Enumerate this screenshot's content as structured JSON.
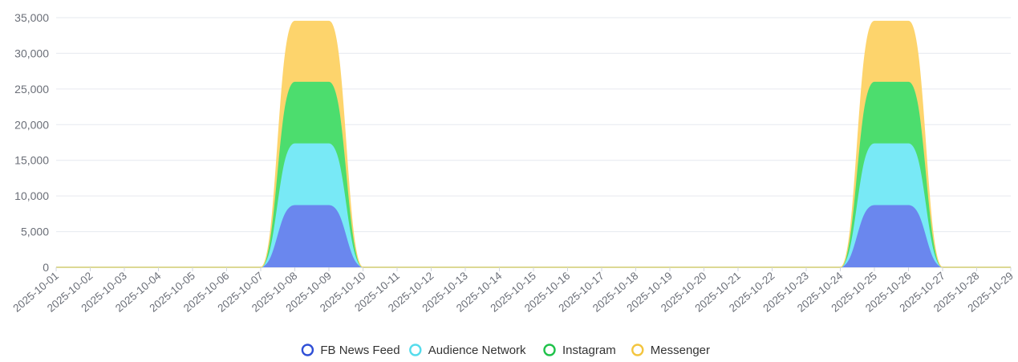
{
  "chart_data": {
    "type": "area",
    "stacked": true,
    "smooth": true,
    "title": "",
    "xlabel": "",
    "ylabel": "",
    "ylim": [
      0,
      35000
    ],
    "yticks": [
      0,
      5000,
      10000,
      15000,
      20000,
      25000,
      30000,
      35000
    ],
    "ytick_labels": [
      "0",
      "5,000",
      "10,000",
      "15,000",
      "20,000",
      "25,000",
      "30,000",
      "35,000"
    ],
    "grid": true,
    "legend_position": "bottom-center",
    "categories": [
      "2025-10-01",
      "2025-10-02",
      "2025-10-03",
      "2025-10-04",
      "2025-10-05",
      "2025-10-06",
      "2025-10-07",
      "2025-10-08",
      "2025-10-09",
      "2025-10-10",
      "2025-10-11",
      "2025-10-12",
      "2025-10-13",
      "2025-10-14",
      "2025-10-15",
      "2025-10-16",
      "2025-10-17",
      "2025-10-18",
      "2025-10-19",
      "2025-10-20",
      "2025-10-21",
      "2025-10-22",
      "2025-10-23",
      "2025-10-24",
      "2025-10-25",
      "2025-10-26",
      "2025-10-27",
      "2025-10-28",
      "2025-10-29"
    ],
    "series": [
      {
        "name": "FB News Feed",
        "fill": "#6a87ee",
        "legend_color": "#2f4fd6",
        "values": [
          0,
          0,
          0,
          0,
          0,
          0,
          0,
          8650,
          8650,
          0,
          0,
          0,
          0,
          0,
          0,
          0,
          0,
          0,
          0,
          0,
          0,
          0,
          0,
          0,
          8650,
          8650,
          0,
          0,
          0
        ]
      },
      {
        "name": "Audience Network",
        "fill": "#78e9f6",
        "legend_color": "#55dcec",
        "values": [
          0,
          0,
          0,
          0,
          0,
          0,
          0,
          8650,
          8650,
          0,
          0,
          0,
          0,
          0,
          0,
          0,
          0,
          0,
          0,
          0,
          0,
          0,
          0,
          0,
          8650,
          8650,
          0,
          0,
          0
        ]
      },
      {
        "name": "Instagram",
        "fill": "#4cdd6e",
        "legend_color": "#1fc24a",
        "values": [
          0,
          0,
          0,
          0,
          0,
          0,
          0,
          8650,
          8650,
          0,
          0,
          0,
          0,
          0,
          0,
          0,
          0,
          0,
          0,
          0,
          0,
          0,
          0,
          0,
          8650,
          8650,
          0,
          0,
          0
        ]
      },
      {
        "name": "Messenger",
        "fill": "#fdd46c",
        "legend_color": "#f3c53f",
        "values": [
          0,
          0,
          0,
          0,
          0,
          0,
          0,
          8550,
          8550,
          0,
          0,
          0,
          0,
          0,
          0,
          0,
          0,
          0,
          0,
          0,
          0,
          0,
          0,
          0,
          8550,
          8550,
          0,
          0,
          0
        ]
      }
    ]
  }
}
